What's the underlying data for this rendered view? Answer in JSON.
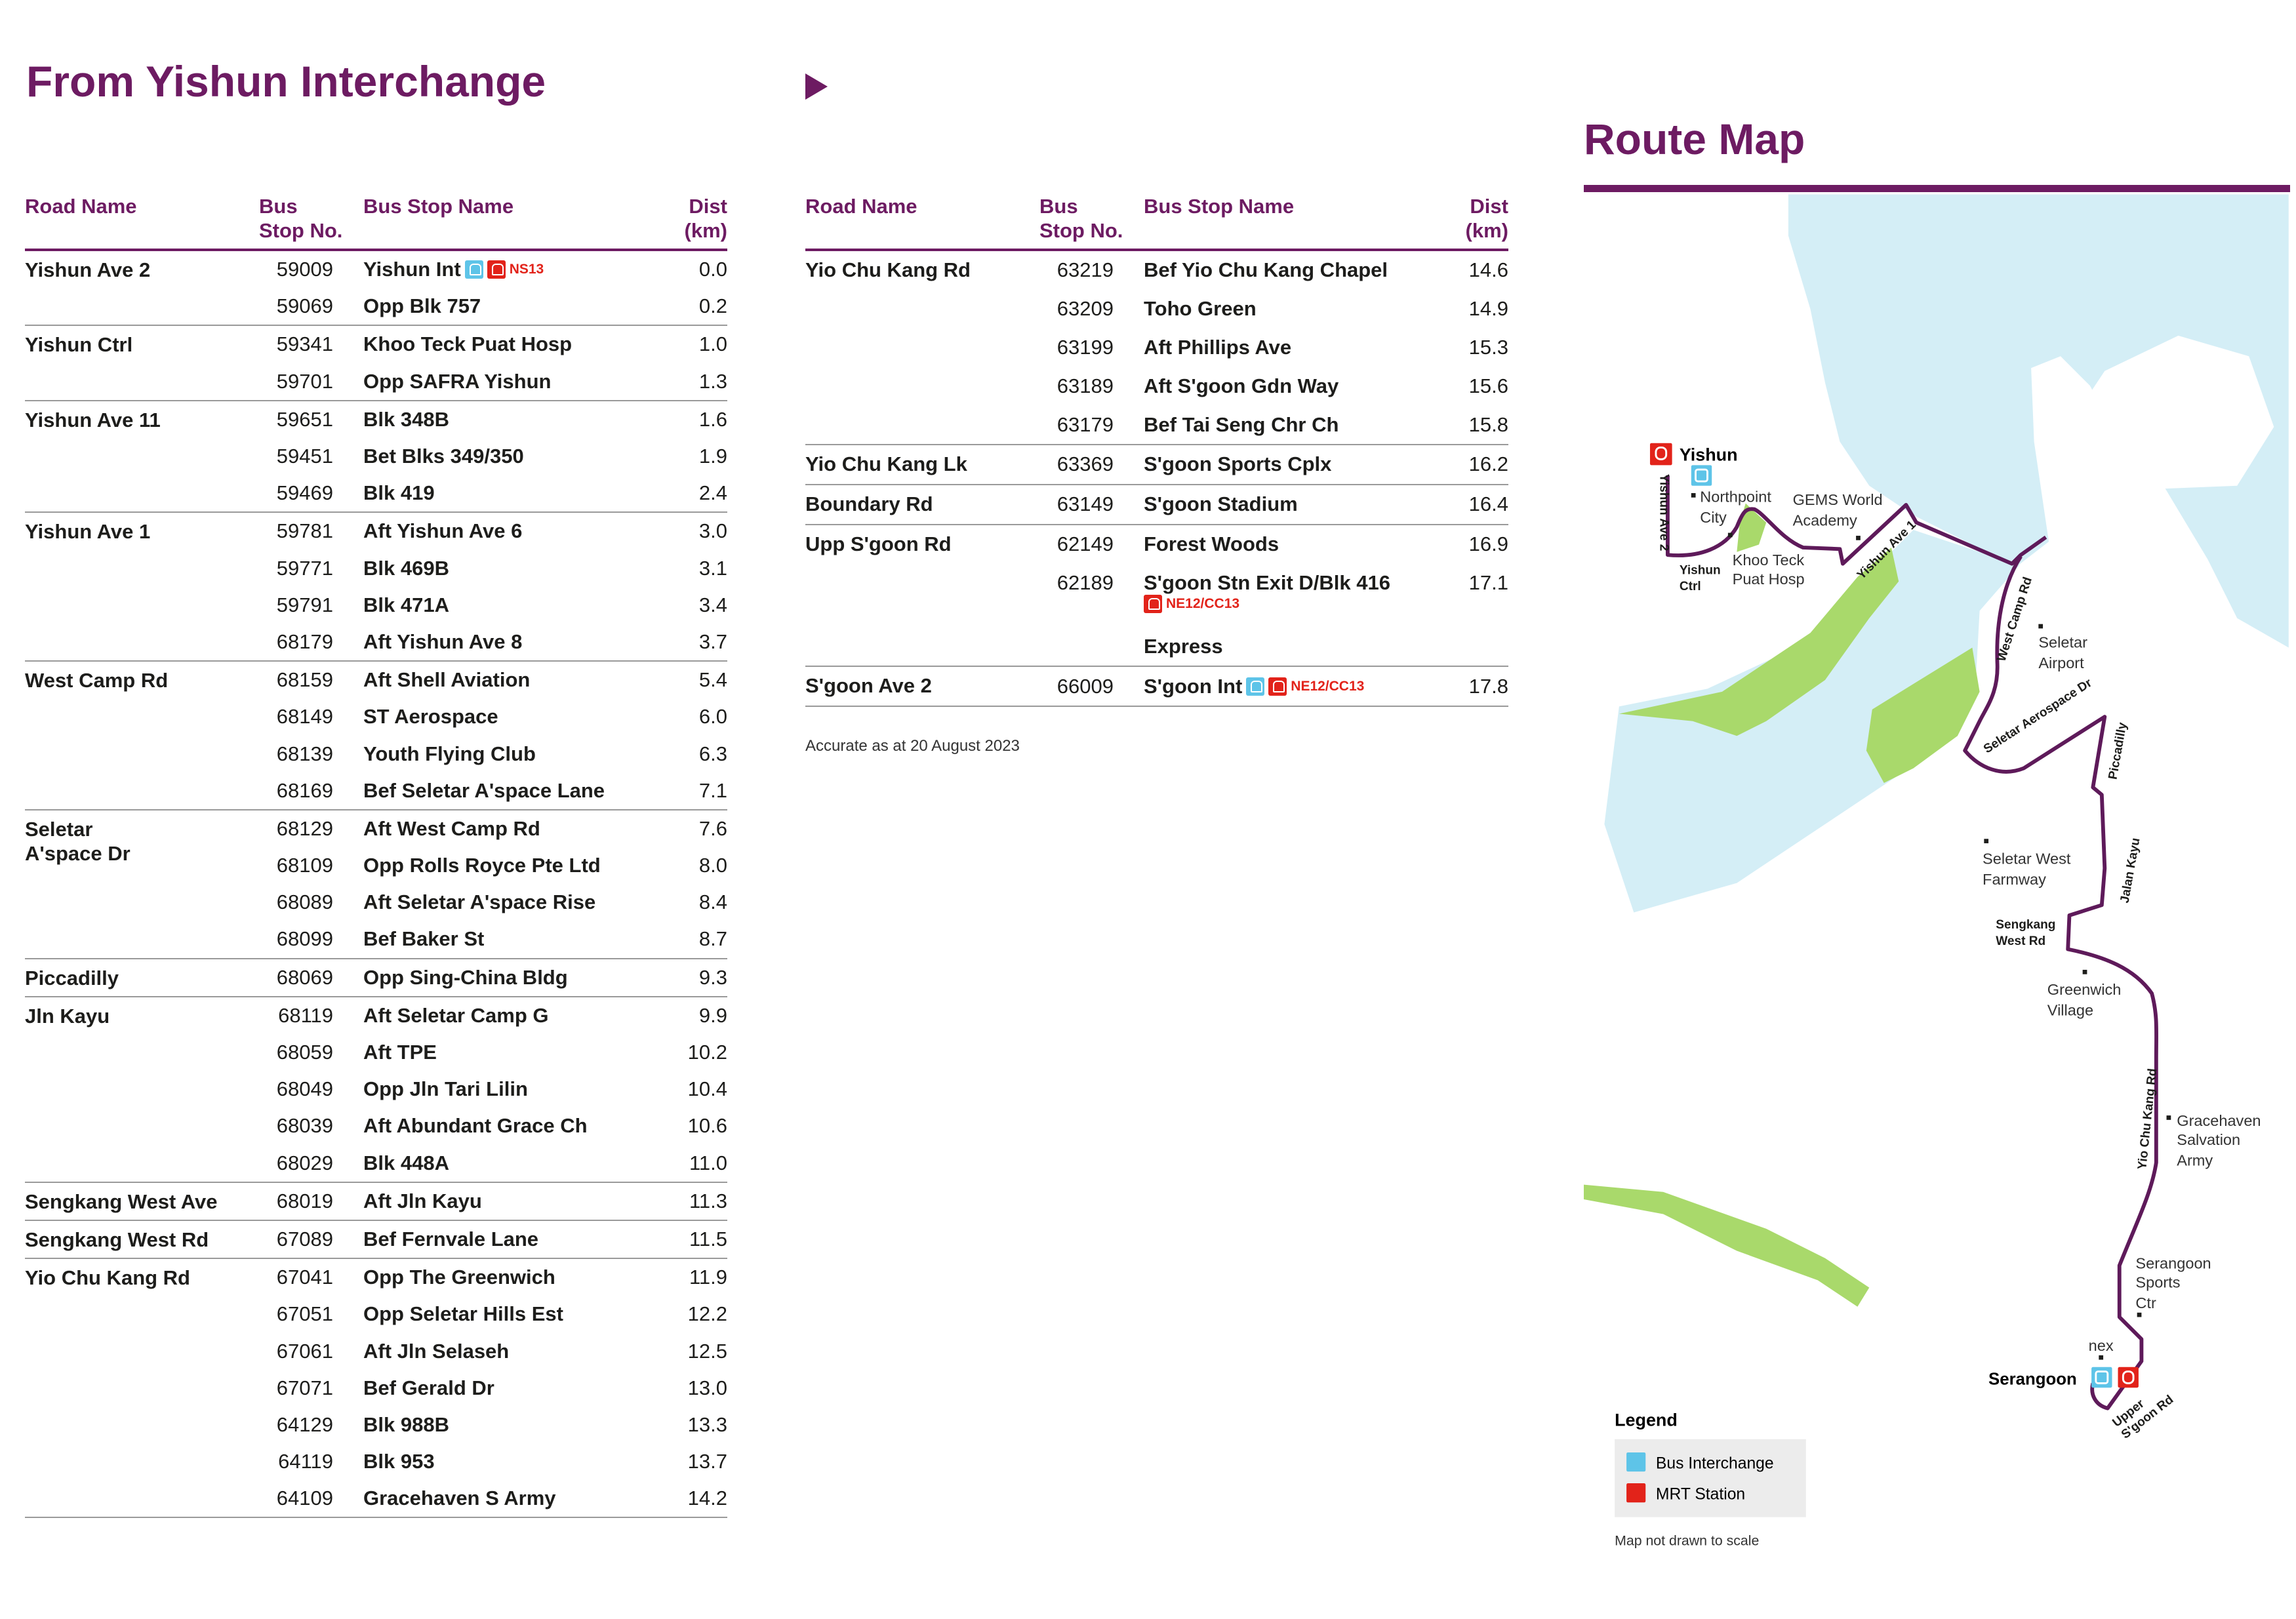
{
  "title": "From Yishun Interchange",
  "headers": {
    "road": "Road Name",
    "bus": "Bus",
    "stop_no": "Stop No.",
    "stop_name": "Bus Stop Name",
    "dist": "Dist",
    "km": "(km)"
  },
  "left_table": [
    {
      "road": "Yishun Ave 2",
      "stops": [
        {
          "no": "59009",
          "name": "Yishun Int",
          "dist": "0.0",
          "bus_int": true,
          "mrt": "NS13"
        },
        {
          "no": "59069",
          "name": "Opp Blk 757",
          "dist": "0.2"
        }
      ]
    },
    {
      "road": "Yishun Ctrl",
      "stops": [
        {
          "no": "59341",
          "name": "Khoo Teck Puat Hosp",
          "dist": "1.0"
        },
        {
          "no": "59701",
          "name": "Opp SAFRA Yishun",
          "dist": "1.3"
        }
      ]
    },
    {
      "road": "Yishun Ave 11",
      "stops": [
        {
          "no": "59651",
          "name": "Blk 348B",
          "dist": "1.6"
        },
        {
          "no": "59451",
          "name": "Bet Blks 349/350",
          "dist": "1.9"
        },
        {
          "no": "59469",
          "name": "Blk 419",
          "dist": "2.4"
        }
      ]
    },
    {
      "road": "Yishun Ave 1",
      "stops": [
        {
          "no": "59781",
          "name": "Aft Yishun Ave 6",
          "dist": "3.0"
        },
        {
          "no": "59771",
          "name": "Blk 469B",
          "dist": "3.1"
        },
        {
          "no": "59791",
          "name": "Blk 471A",
          "dist": "3.4"
        },
        {
          "no": "68179",
          "name": "Aft Yishun Ave 8",
          "dist": "3.7"
        }
      ]
    },
    {
      "road": "West Camp Rd",
      "stops": [
        {
          "no": "68159",
          "name": "Aft Shell Aviation",
          "dist": "5.4"
        },
        {
          "no": "68149",
          "name": "ST Aerospace",
          "dist": "6.0"
        },
        {
          "no": "68139",
          "name": "Youth Flying Club",
          "dist": "6.3"
        },
        {
          "no": "68169",
          "name": "Bef Seletar A'space Lane",
          "dist": "7.1"
        }
      ]
    },
    {
      "road": "Seletar\nA'space Dr",
      "stops": [
        {
          "no": "68129",
          "name": "Aft West Camp Rd",
          "dist": "7.6"
        },
        {
          "no": "68109",
          "name": "Opp Rolls Royce Pte Ltd",
          "dist": "8.0"
        },
        {
          "no": "68089",
          "name": "Aft Seletar A'space Rise",
          "dist": "8.4"
        },
        {
          "no": "68099",
          "name": "Bef Baker St",
          "dist": "8.7"
        }
      ]
    },
    {
      "road": "Piccadilly",
      "stops": [
        {
          "no": "68069",
          "name": "Opp Sing-China Bldg",
          "dist": "9.3"
        }
      ]
    },
    {
      "road": "Jln Kayu",
      "stops": [
        {
          "no": "68119",
          "name": "Aft Seletar Camp G",
          "dist": "9.9"
        },
        {
          "no": "68059",
          "name": "Aft TPE",
          "dist": "10.2"
        },
        {
          "no": "68049",
          "name": "Opp Jln Tari Lilin",
          "dist": "10.4"
        },
        {
          "no": "68039",
          "name": "Aft Abundant Grace Ch",
          "dist": "10.6"
        },
        {
          "no": "68029",
          "name": "Blk 448A",
          "dist": "11.0"
        }
      ]
    },
    {
      "road": "Sengkang West Ave",
      "stops": [
        {
          "no": "68019",
          "name": "Aft Jln Kayu",
          "dist": "11.3"
        }
      ]
    },
    {
      "road": "Sengkang West Rd",
      "stops": [
        {
          "no": "67089",
          "name": "Bef Fernvale Lane",
          "dist": "11.5"
        }
      ]
    },
    {
      "road": "Yio Chu Kang Rd",
      "stops": [
        {
          "no": "67041",
          "name": "Opp The Greenwich",
          "dist": "11.9"
        },
        {
          "no": "67051",
          "name": "Opp Seletar Hills Est",
          "dist": "12.2"
        },
        {
          "no": "67061",
          "name": "Aft Jln Selaseh",
          "dist": "12.5"
        },
        {
          "no": "67071",
          "name": "Bef Gerald Dr",
          "dist": "13.0"
        },
        {
          "no": "64129",
          "name": "Blk 988B",
          "dist": "13.3"
        },
        {
          "no": "64119",
          "name": "Blk 953",
          "dist": "13.7"
        },
        {
          "no": "64109",
          "name": "Gracehaven S Army",
          "dist": "14.2"
        }
      ]
    }
  ],
  "right_table": [
    {
      "road": "Yio Chu Kang Rd",
      "stops": [
        {
          "no": "63219",
          "name": "Bef Yio Chu Kang Chapel",
          "dist": "14.6"
        },
        {
          "no": "63209",
          "name": "Toho Green",
          "dist": "14.9"
        },
        {
          "no": "63199",
          "name": "Aft Phillips Ave",
          "dist": "15.3"
        },
        {
          "no": "63189",
          "name": "Aft S'goon Gdn Way",
          "dist": "15.6"
        },
        {
          "no": "63179",
          "name": "Bef Tai Seng Chr Ch",
          "dist": "15.8"
        }
      ]
    },
    {
      "road": "Yio Chu Kang Lk",
      "stops": [
        {
          "no": "63369",
          "name": "S'goon Sports Cplx",
          "dist": "16.2"
        }
      ]
    },
    {
      "road": "Boundary Rd",
      "stops": [
        {
          "no": "63149",
          "name": "S'goon Stadium",
          "dist": "16.4"
        }
      ]
    },
    {
      "road": "Upp S'goon Rd",
      "stops": [
        {
          "no": "62149",
          "name": "Forest Woods",
          "dist": "16.9"
        },
        {
          "no": "62189",
          "name": "S'goon Stn Exit D/Blk 416",
          "dist": "17.1",
          "sub_mrt": "NE12/CC13"
        },
        {
          "no": "",
          "name": "Express",
          "dist": ""
        }
      ]
    },
    {
      "road": "S'goon Ave 2",
      "stops": [
        {
          "no": "66009",
          "name": "S'goon Int",
          "dist": "17.8",
          "bus_int": true,
          "mrt": "NE12/CC13"
        }
      ]
    }
  ],
  "note": "Accurate as at 20 August 2023",
  "route_map": {
    "title": "Route Map",
    "stations": {
      "start": "Yishun",
      "end": "Serangoon"
    },
    "roads": {
      "yishun_ave_2": "Yishun Ave 2",
      "yishun_ctrl_1": "Yishun",
      "yishun_ctrl_2": "Ctrl",
      "yishun_ave_1": "Yishun Ave 1",
      "west_camp_rd": "West Camp Rd",
      "seletar_aerospace_dr": "Seletar Aerospace Dr",
      "piccadilly": "Piccadilly",
      "jalan_kayu": "Jalan Kayu",
      "sengkang_west_rd_1": "Sengkang",
      "sengkang_west_rd_2": "West Rd",
      "yio_chu_kang_rd": "Yio Chu Kang Rd",
      "upper_sgoon_rd_1": "Upper",
      "upper_sgoon_rd_2": "S'goon Rd"
    },
    "landmarks": {
      "northpoint_1": "Northpoint",
      "northpoint_2": "City",
      "gems_1": "GEMS World",
      "gems_2": "Academy",
      "ktph_1": "Khoo Teck",
      "ktph_2": "Puat Hosp",
      "airport_1": "Seletar",
      "airport_2": "Airport",
      "farmway_1": "Seletar West",
      "farmway_2": "Farmway",
      "greenwich_1": "Greenwich",
      "greenwich_2": "Village",
      "gracehaven_1": "Gracehaven",
      "gracehaven_2": "Salvation",
      "gracehaven_3": "Army",
      "sports_1": "Serangoon",
      "sports_2": "Sports",
      "sports_3": "Ctr",
      "nex": "nex"
    },
    "legend": {
      "title": "Legend",
      "bus_interchange": "Bus Interchange",
      "mrt_station": "MRT Station"
    },
    "scale_note": "Map not drawn to scale",
    "colors": {
      "route": "#5e1a5a",
      "water": "#d4eef6",
      "green": "#a9d96b",
      "bus_int": "#5ec4e8",
      "mrt": "#e2231a",
      "accent": "#6d1b62"
    }
  }
}
